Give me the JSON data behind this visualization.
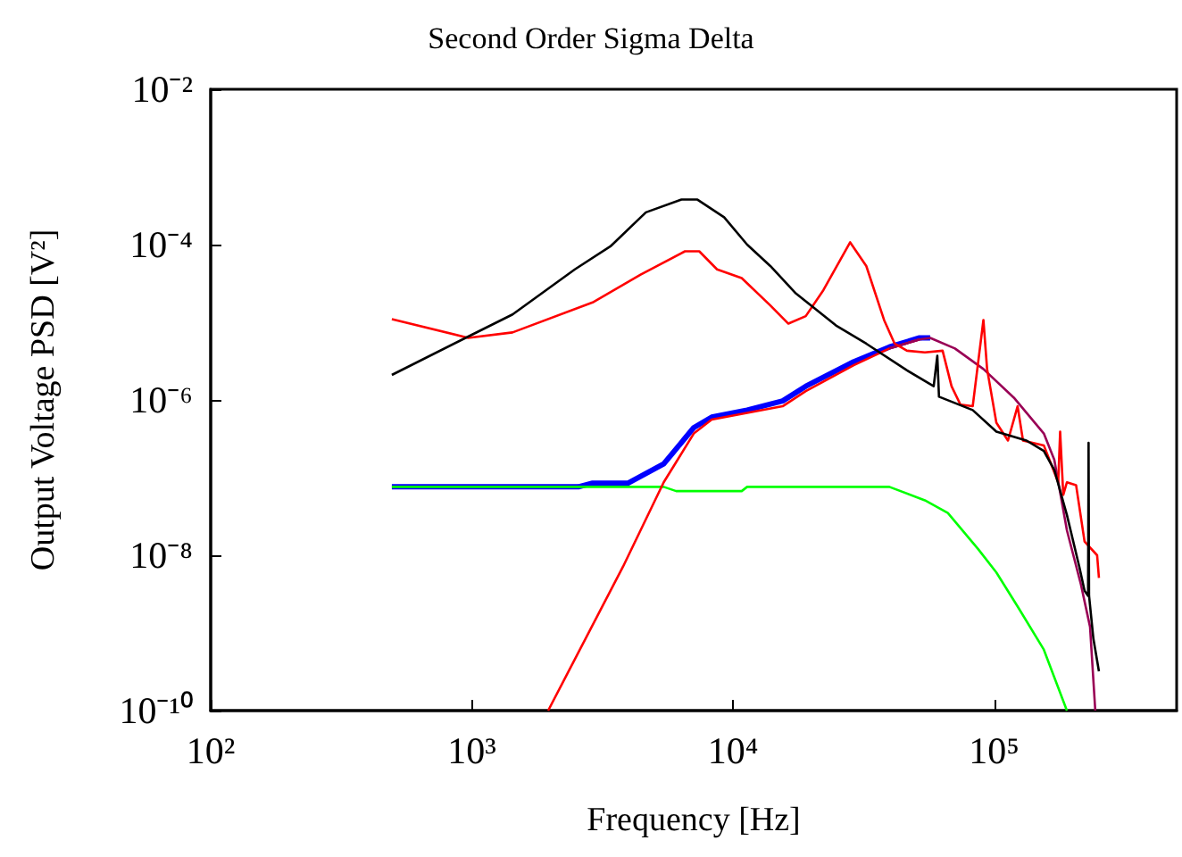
{
  "chart_data": {
    "type": "line",
    "title": "Second Order Sigma Delta",
    "xlabel": "Frequency [Hz]",
    "ylabel": "Output Voltage PSD [V²]",
    "log": "xy",
    "grid": false,
    "xlim": [
      100,
      500000
    ],
    "ylim": [
      1e-10,
      0.01
    ],
    "xticks": [
      {
        "value": 100,
        "label": "10²"
      },
      {
        "value": 1000,
        "label": "10³"
      },
      {
        "value": 10000,
        "label": "10⁴"
      },
      {
        "value": 100000,
        "label": "10⁵"
      }
    ],
    "yticks": [
      {
        "value": 1e-10,
        "label": "10⁻¹⁰"
      },
      {
        "value": 1e-08,
        "label": "10⁻⁸"
      },
      {
        "value": 1e-06,
        "label": "10⁻⁶"
      },
      {
        "value": 0.0001,
        "label": "10⁻⁴"
      },
      {
        "value": 0.01,
        "label": "10⁻²"
      }
    ],
    "series": [
      {
        "color": "#0000ff",
        "x": [
          494,
          2560,
          2900,
          3970,
          5430,
          7080,
          8290,
          11330,
          15500,
          19000,
          29000,
          39700,
          51800,
          56900
        ],
        "values": [
          7.6e-08,
          7.6e-08,
          8.5e-08,
          8.5e-08,
          1.5e-07,
          4.4e-07,
          6e-07,
          7.4e-07,
          9.7e-07,
          1.5e-06,
          3.1e-06,
          4.8e-06,
          6.3e-06,
          6.3e-06
        ]
      },
      {
        "color": "#00ff00",
        "x": [
          494,
          5430,
          6060,
          10800,
          11330,
          39700,
          54300,
          66500,
          86900,
          102000,
          124000,
          155000,
          190000
        ],
        "values": [
          7.6e-08,
          7.6e-08,
          6.7e-08,
          6.7e-08,
          7.6e-08,
          7.6e-08,
          5.1e-08,
          3.5e-08,
          1.2e-08,
          6e-09,
          2.1e-09,
          6.1e-10,
          1e-10
        ]
      },
      {
        "color": "#ff0000",
        "x": [
          1960,
          3790,
          5430,
          7080,
          8290,
          15500,
          19000,
          29000,
          39700,
          51800
        ],
        "values": [
          1e-10,
          7.1e-09,
          8.7e-08,
          3.7e-07,
          5.6e-07,
          8.3e-07,
          1.3e-06,
          2.8e-06,
          4.6e-06,
          6e-06
        ]
      },
      {
        "color": "#990055",
        "x": [
          39700,
          51800,
          56900,
          70800,
          91000,
          119000,
          155000,
          170000,
          190000,
          215000,
          233000,
          244000
        ],
        "values": [
          4.6e-06,
          6e-06,
          6.3e-06,
          4.6e-06,
          2.5e-06,
          1.07e-06,
          3.7e-07,
          1.7e-07,
          2.1e-08,
          4.2e-09,
          1.2e-09,
          1e-10
        ]
      },
      {
        "color": "#ff0000",
        "x": [
          494,
          968,
          1432,
          2900,
          4430,
          6550,
          7430,
          8690,
          10800,
          13900,
          16300,
          19000,
          22200,
          28100,
          32400,
          37900,
          41600,
          46400,
          54300,
          63500,
          68700,
          74300,
          82800,
          91000,
          94000,
          102000,
          113000,
          123000,
          129000,
          155000,
          176000,
          179000,
          184000,
          190000,
          206000,
          222000,
          248000,
          252000
        ],
        "values": [
          1.1e-05,
          6.3e-06,
          7.4e-06,
          1.8e-05,
          4.1e-05,
          8.2e-05,
          8.2e-05,
          4.8e-05,
          3.7e-05,
          1.65e-05,
          9.6e-06,
          1.2e-05,
          2.6e-05,
          0.000107,
          5.3e-05,
          1.07e-05,
          5.3e-06,
          4.3e-06,
          4.1e-06,
          4.3e-06,
          1.5e-06,
          8.7e-07,
          8.3e-07,
          1.07e-05,
          2.5e-06,
          5.1e-07,
          3e-07,
          8.3e-07,
          3e-07,
          2.6e-07,
          8.7e-08,
          3.9e-07,
          6e-08,
          8.7e-08,
          8e-08,
          1.5e-08,
          1e-08,
          5.1e-09
        ]
      },
      {
        "color": "#000000",
        "x": [
          494,
          1000,
          1432,
          2480,
          3395,
          4640,
          6350,
          7310,
          9250,
          11330,
          13900,
          17300,
          24800,
          32400,
          46400,
          58700,
          60600,
          61500,
          82800,
          102000,
          133000,
          155000,
          170000,
          190000,
          212000,
          222000,
          229000,
          230000,
          231000,
          240000,
          252000
        ],
        "values": [
          2.1e-06,
          6.9e-06,
          1.26e-05,
          4.8e-05,
          9.5e-05,
          0.00026,
          0.00038,
          0.00038,
          0.000225,
          0.0001,
          5.3e-05,
          2.4e-05,
          9.1e-06,
          5.3e-06,
          2.4e-06,
          1.5e-06,
          3.7e-06,
          1.1e-06,
          7.4e-07,
          3.9e-07,
          3e-07,
          2.2e-07,
          1.26e-07,
          3.3e-08,
          7.1e-09,
          3.5e-09,
          3e-09,
          2.8e-07,
          3e-09,
          8.4e-10,
          3.2e-10
        ]
      }
    ]
  }
}
